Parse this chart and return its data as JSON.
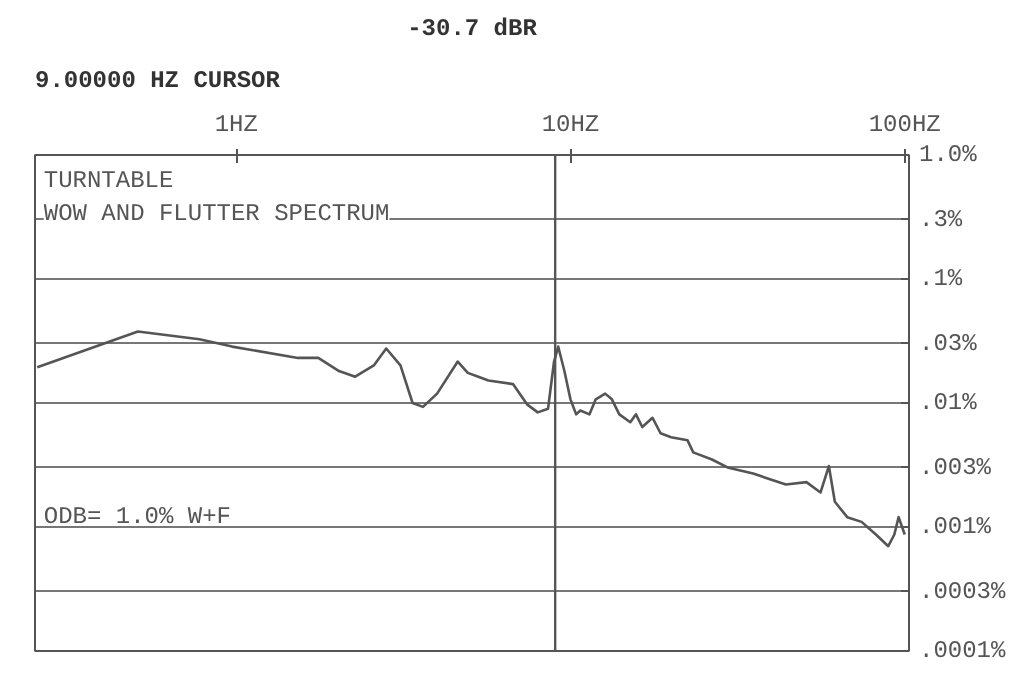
{
  "chart_data": {
    "type": "line",
    "annotations": [
      "9.00000 HZ CURSOR",
      "-30.7 dBR",
      "TURNTABLE",
      "WOW AND FLUTTER SPECTRUM",
      "ODB= 1.0% W+F"
    ],
    "x": [
      0.254,
      0.508,
      0.776,
      0.972,
      1.53,
      1.76,
      2.03,
      2.27,
      2.58,
      2.81,
      3.1,
      3.37,
      3.62,
      3.99,
      4.6,
      4.93,
      5.3,
      5.68,
      6.73,
      7.43,
      7.98,
      8.57,
      8.93,
      9.19,
      9.59,
      10.0,
      10.4,
      10.7,
      11.4,
      11.9,
      12.7,
      13.3,
      14.0,
      15.1,
      15.7,
      16.4,
      17.6,
      18.6,
      20.0,
      22.4,
      23.3,
      26.5,
      29.7,
      35.2,
      38.3,
      44.1,
      50.8,
      56.0,
      59.3,
      61.8,
      67.3,
      74.3,
      82.0,
      89.3,
      93.1,
      95.9,
      100
    ],
    "series": [
      {
        "color": "#555555",
        "values": [
          0.0194,
          0.0377,
          0.0327,
          0.0285,
          0.0231,
          0.0231,
          0.0181,
          0.0163,
          0.0201,
          0.0275,
          0.0201,
          0.01,
          0.0093,
          0.0119,
          0.0216,
          0.0175,
          0.0163,
          0.0152,
          0.0142,
          0.0097,
          0.0084,
          0.009,
          0.0216,
          0.0285,
          0.0181,
          0.0107,
          0.0081,
          0.0087,
          0.0081,
          0.0107,
          0.0119,
          0.0107,
          0.0081,
          0.007,
          0.0081,
          0.0064,
          0.0076,
          0.0057,
          0.0053,
          0.005,
          0.004,
          0.0035,
          0.003,
          0.0027,
          0.0025,
          0.0022,
          0.0023,
          0.0019,
          0.0031,
          0.0016,
          0.0012,
          0.0011,
          0.00087,
          0.0007,
          0.00087,
          0.0012,
          0.00087
        ]
      }
    ],
    "log": "xy",
    "xlim": [
      0.25,
      103
    ],
    "xticks": [
      {
        "value": 1,
        "label": "1HZ"
      },
      {
        "value": 10,
        "label": "10HZ"
      },
      {
        "value": 100,
        "label": "100HZ"
      }
    ],
    "ylim": [
      0.0001,
      1.0
    ],
    "yticks": [
      {
        "value": 1.0,
        "label": "1.0%"
      },
      {
        "value": 0.3,
        "label": ".3%"
      },
      {
        "value": 0.1,
        "label": ".1%"
      },
      {
        "value": 0.03,
        "label": ".03%"
      },
      {
        "value": 0.01,
        "label": ".01%"
      },
      {
        "value": 0.003,
        "label": ".003%"
      },
      {
        "value": 0.001,
        "label": ".001%"
      },
      {
        "value": 0.0003,
        "label": ".0003%"
      },
      {
        "value": 0.0001,
        "label": ".0001%"
      }
    ],
    "grid": "y",
    "ref_lines": [
      {
        "axis": "x",
        "value": 9,
        "color": "#555555"
      }
    ]
  }
}
